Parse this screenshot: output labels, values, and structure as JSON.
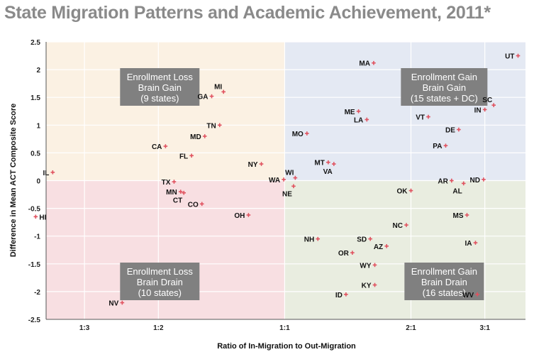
{
  "title": "State Migration Patterns and Academic Achievement, 2011*",
  "chart_data": {
    "type": "scatter",
    "xlabel": "Ratio of In-Migration to Out-Migration",
    "ylabel": "Difference in Mean ACT Composite Score",
    "x_scale": "log",
    "xlim": [
      0.27,
      3.75
    ],
    "ylim": [
      -2.5,
      2.5
    ],
    "x_ticks": [
      {
        "value": 0.3333,
        "label": "1:3"
      },
      {
        "value": 0.5,
        "label": "1:2"
      },
      {
        "value": 1,
        "label": "1:1"
      },
      {
        "value": 2,
        "label": "2:1"
      },
      {
        "value": 3,
        "label": "3:1"
      }
    ],
    "y_ticks": [
      2.5,
      2,
      1.5,
      1,
      0.5,
      0,
      -0.5,
      -1,
      -1.5,
      -2,
      -2.5
    ],
    "y_tick_labels": [
      "2.5",
      "2",
      "1.5",
      "1",
      "0.5",
      "0",
      "-0.5",
      "-1",
      "-1.5",
      "-2",
      "-2.5"
    ],
    "quadrants": [
      {
        "name": "top-left",
        "color": "#fbf1e3",
        "lines": [
          "Enrollment Loss",
          "Brain Gain",
          "(9 states)"
        ]
      },
      {
        "name": "top-right",
        "color": "#e4e9f3",
        "lines": [
          "Enrollment Gain",
          "Brain Gain",
          "(15 states + DC)"
        ]
      },
      {
        "name": "bottom-left",
        "color": "#f8dfe2",
        "lines": [
          "Enrollment Loss",
          "Brain Drain",
          "(10 states)"
        ]
      },
      {
        "name": "bottom-right",
        "color": "#e9ede0",
        "lines": [
          "Enrollment Gain",
          "Brain Drain",
          "(16 states)"
        ]
      }
    ],
    "marker_color": "#e0525f",
    "points": [
      {
        "label": "UT",
        "x": 3.6,
        "y": 2.25,
        "pos": "left"
      },
      {
        "label": "MA",
        "x": 1.63,
        "y": 2.12,
        "pos": "left"
      },
      {
        "label": "MI",
        "x": 0.715,
        "y": 1.6,
        "pos": "above-left"
      },
      {
        "label": "GA",
        "x": 0.67,
        "y": 1.52,
        "pos": "left"
      },
      {
        "label": "SC",
        "x": 3.15,
        "y": 1.36,
        "pos": "above-left"
      },
      {
        "label": "IN",
        "x": 3.0,
        "y": 1.28,
        "pos": "left"
      },
      {
        "label": "ME",
        "x": 1.5,
        "y": 1.25,
        "pos": "left"
      },
      {
        "label": "VT",
        "x": 2.2,
        "y": 1.15,
        "pos": "left"
      },
      {
        "label": "LA",
        "x": 1.57,
        "y": 1.1,
        "pos": "left"
      },
      {
        "label": "TN",
        "x": 0.7,
        "y": 1.0,
        "pos": "left"
      },
      {
        "label": "DE",
        "x": 2.6,
        "y": 0.92,
        "pos": "left"
      },
      {
        "label": "MO",
        "x": 1.13,
        "y": 0.85,
        "pos": "left"
      },
      {
        "label": "MD",
        "x": 0.645,
        "y": 0.8,
        "pos": "left"
      },
      {
        "label": "PA",
        "x": 2.42,
        "y": 0.63,
        "pos": "left"
      },
      {
        "label": "CA",
        "x": 0.52,
        "y": 0.62,
        "pos": "left"
      },
      {
        "label": "FL",
        "x": 0.6,
        "y": 0.45,
        "pos": "left"
      },
      {
        "label": "MT",
        "x": 1.27,
        "y": 0.33,
        "pos": "left"
      },
      {
        "label": "NY",
        "x": 0.88,
        "y": 0.3,
        "pos": "left"
      },
      {
        "label": "VA",
        "x": 1.31,
        "y": 0.3,
        "pos": "below-left"
      },
      {
        "label": "IL",
        "x": 0.28,
        "y": 0.15,
        "pos": "left"
      },
      {
        "label": "WI",
        "x": 1.06,
        "y": 0.05,
        "pos": "above-left"
      },
      {
        "label": "WA",
        "x": 0.995,
        "y": 0.02,
        "pos": "left"
      },
      {
        "label": "ND",
        "x": 2.98,
        "y": 0.02,
        "pos": "left"
      },
      {
        "label": "AR",
        "x": 2.5,
        "y": 0.0,
        "pos": "left"
      },
      {
        "label": "TX",
        "x": 0.545,
        "y": -0.02,
        "pos": "left"
      },
      {
        "label": "AL",
        "x": 2.67,
        "y": -0.05,
        "pos": "below-left"
      },
      {
        "label": "NE",
        "x": 1.05,
        "y": -0.1,
        "pos": "below-left"
      },
      {
        "label": "MN",
        "x": 0.565,
        "y": -0.2,
        "pos": "left"
      },
      {
        "label": "OK",
        "x": 2.0,
        "y": -0.18,
        "pos": "left"
      },
      {
        "label": "CT",
        "x": 0.575,
        "y": -0.22,
        "pos": "below-left"
      },
      {
        "label": "CO",
        "x": 0.635,
        "y": -0.42,
        "pos": "left"
      },
      {
        "label": "OH",
        "x": 0.82,
        "y": -0.62,
        "pos": "left"
      },
      {
        "label": "MS",
        "x": 2.72,
        "y": -0.62,
        "pos": "left"
      },
      {
        "label": "HI",
        "x": 0.255,
        "y": -0.65,
        "pos": "right"
      },
      {
        "label": "NC",
        "x": 1.95,
        "y": -0.8,
        "pos": "left"
      },
      {
        "label": "NH",
        "x": 1.2,
        "y": -1.05,
        "pos": "left"
      },
      {
        "label": "SD",
        "x": 1.6,
        "y": -1.05,
        "pos": "left"
      },
      {
        "label": "IA",
        "x": 2.85,
        "y": -1.12,
        "pos": "left"
      },
      {
        "label": "AZ",
        "x": 1.75,
        "y": -1.18,
        "pos": "left"
      },
      {
        "label": "OR",
        "x": 1.45,
        "y": -1.3,
        "pos": "left"
      },
      {
        "label": "WY",
        "x": 1.64,
        "y": -1.52,
        "pos": "left"
      },
      {
        "label": "KY",
        "x": 1.64,
        "y": -1.88,
        "pos": "left"
      },
      {
        "label": "ID",
        "x": 1.4,
        "y": -2.05,
        "pos": "left"
      },
      {
        "label": "WV",
        "x": 2.88,
        "y": -2.05,
        "pos": "left"
      },
      {
        "label": "NV",
        "x": 0.41,
        "y": -2.2,
        "pos": "left"
      }
    ]
  }
}
